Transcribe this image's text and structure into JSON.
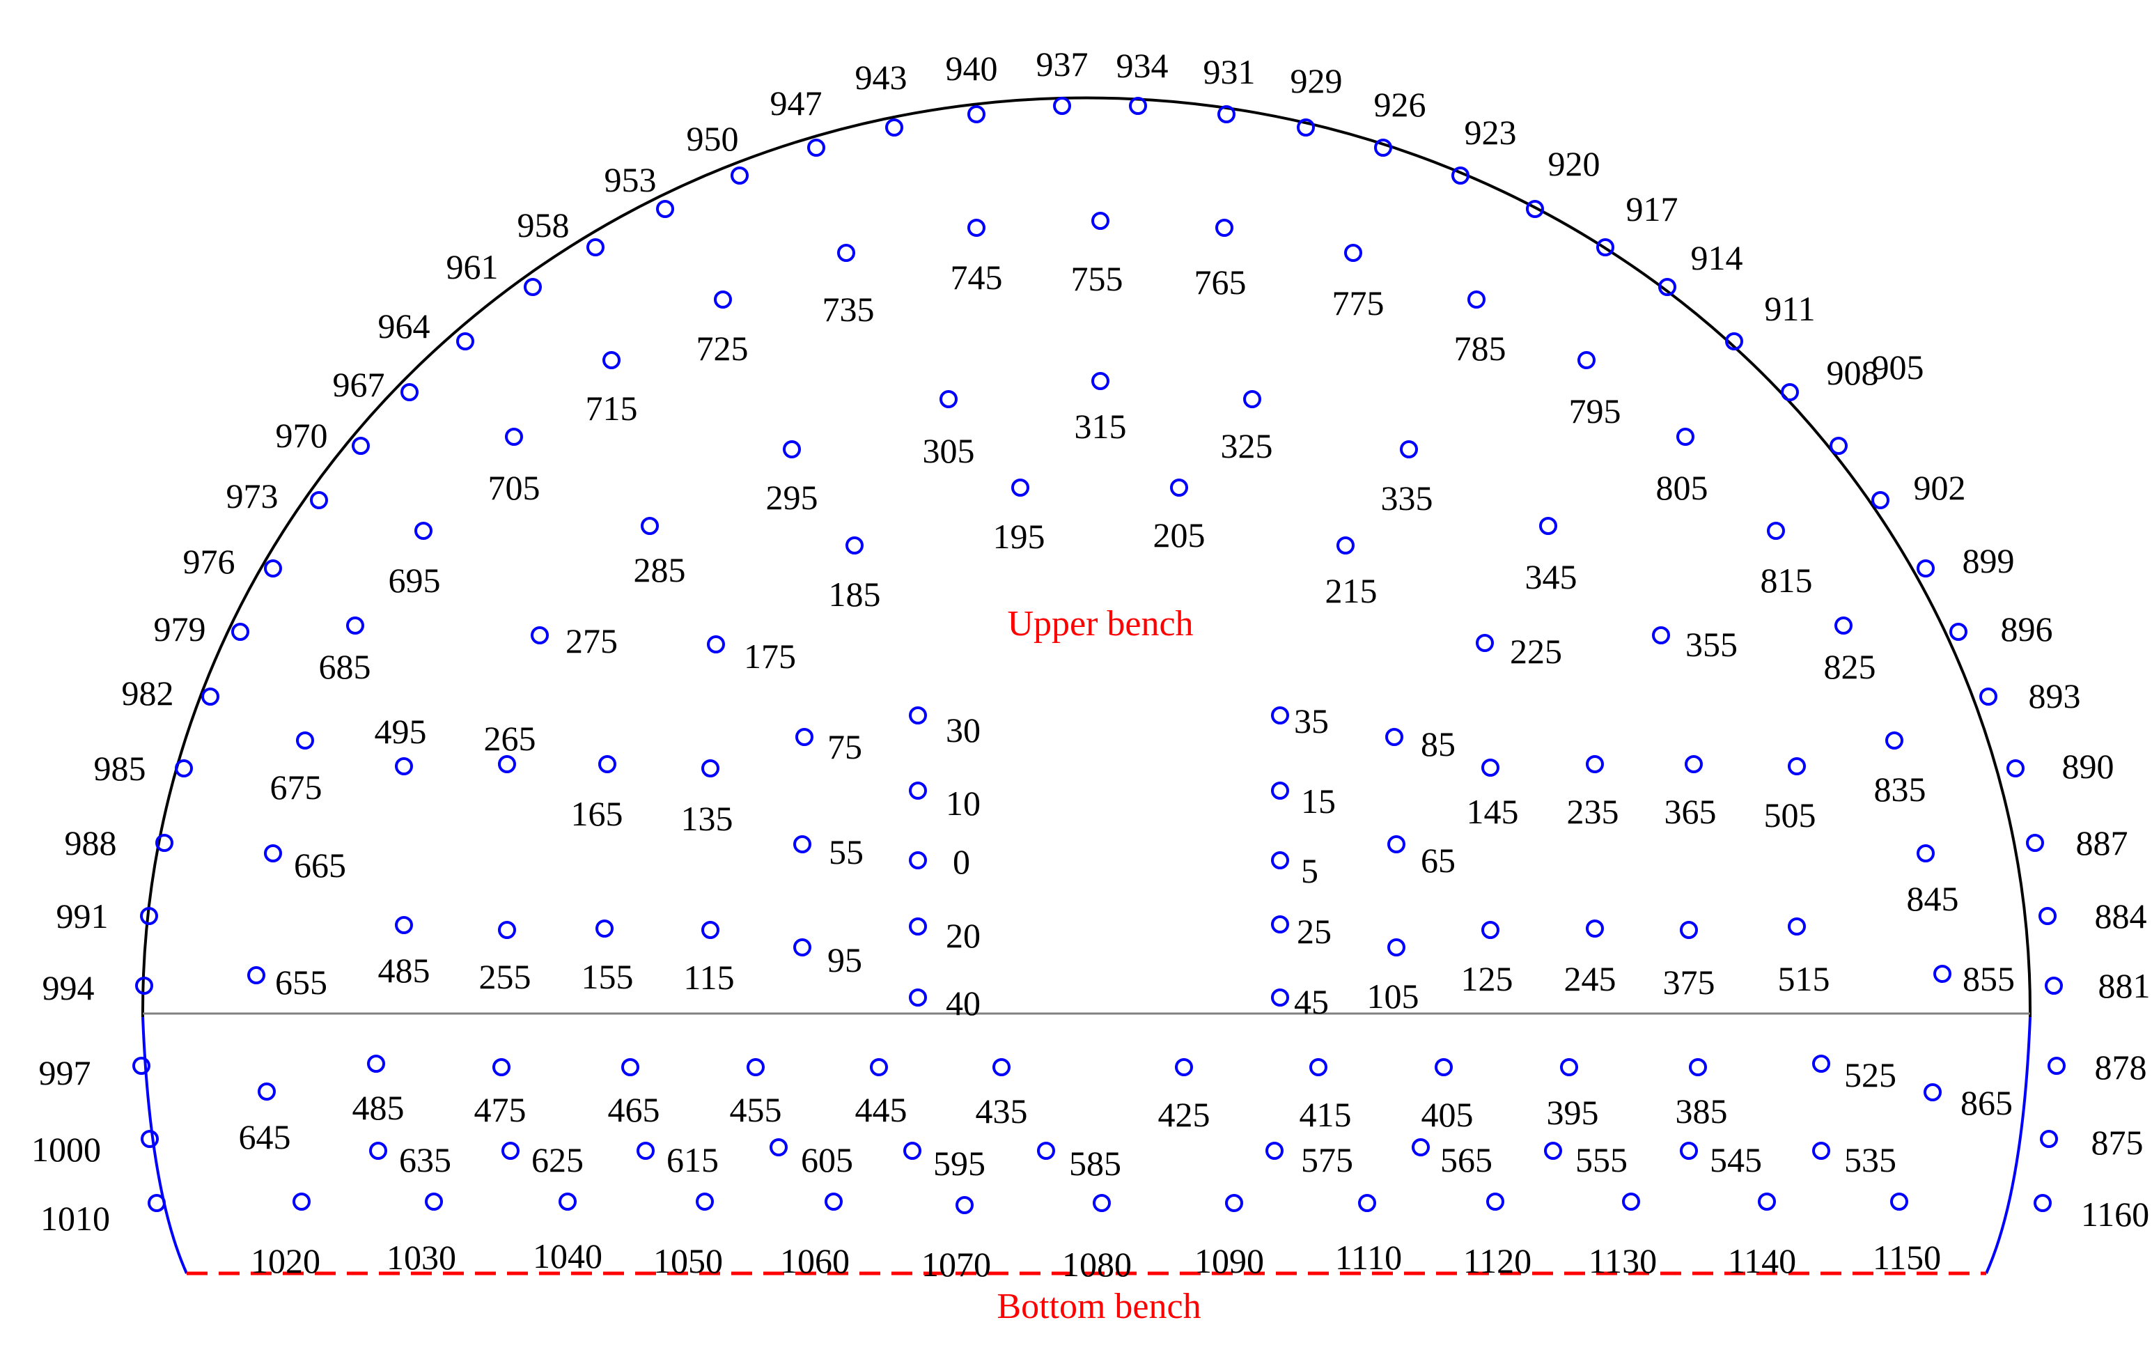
{
  "labels": {
    "upper_bench": "Upper bench",
    "bottom_bench": "Bottom bench"
  },
  "colors": {
    "hole": "#0000ff",
    "outline": "#000000",
    "invert_sides": "#0000ff",
    "bench_line": "#808080",
    "bottom_line": "#ff0000",
    "bench_text": "#ff0000"
  },
  "holes": [
    "937",
    "934",
    "940",
    "931",
    "943",
    "929",
    "947",
    "926",
    "950",
    "923",
    "953",
    "920",
    "958",
    "917",
    "961",
    "914",
    "964",
    "911",
    "967",
    "908",
    "970",
    "905",
    "973",
    "902",
    "976",
    "899",
    "979",
    "896",
    "982",
    "893",
    "985",
    "890",
    "988",
    "887",
    "991",
    "884",
    "994",
    "881",
    "997",
    "878",
    "1000",
    "875",
    "1010",
    "1160",
    "755",
    "745",
    "765",
    "735",
    "775",
    "725",
    "785",
    "715",
    "795",
    "705",
    "805",
    "695",
    "815",
    "685",
    "825",
    "675",
    "835",
    "665",
    "845",
    "655",
    "855",
    "315",
    "305",
    "325",
    "295",
    "335",
    "285",
    "345",
    "275",
    "355",
    "495",
    "265",
    "165",
    "135",
    "485",
    "255",
    "155",
    "115",
    "175",
    "185",
    "195",
    "205",
    "215",
    "225",
    "235",
    "365",
    "505",
    "145",
    "245",
    "375",
    "515",
    "125",
    "75",
    "55",
    "95",
    "30",
    "10",
    "0",
    "20",
    "40",
    "35",
    "15",
    "5",
    "25",
    "45",
    "85",
    "65",
    "105",
    "645",
    "485",
    "475",
    "465",
    "455",
    "445",
    "435",
    "425",
    "415",
    "405",
    "395",
    "385",
    "525",
    "865",
    "635",
    "625",
    "615",
    "605",
    "595",
    "585",
    "575",
    "565",
    "555",
    "545",
    "535",
    "1020",
    "1030",
    "1040",
    "1050",
    "1060",
    "1070",
    "1080",
    "1090",
    "1110",
    "1120",
    "1130",
    "1140",
    "1150"
  ]
}
